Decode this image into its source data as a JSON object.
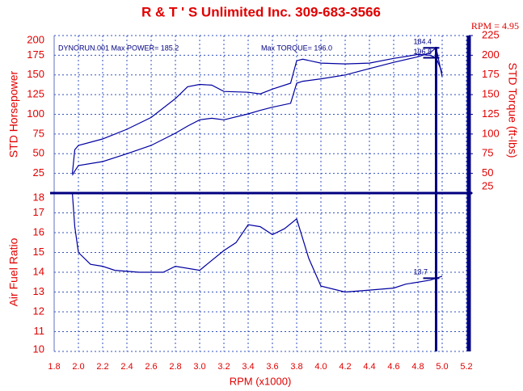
{
  "chart_data": [
    {
      "type": "line",
      "title": "R & T ' S   Unlimited Inc. 309-683-3566",
      "cursor_label": "RPM = 4.95",
      "cursor_rpm": 4.95,
      "ylabel": "STD Horsepower",
      "y2label": "STD Torque (ft-lbs)",
      "annotations": [
        "DYNORUN.001  Max POWER= 185.2",
        "Max TORQUE= 196.0"
      ],
      "xlim": [
        1.8,
        5.2
      ],
      "ylim": [
        0,
        200
      ],
      "yticks": [
        25,
        50,
        75,
        100,
        125,
        150,
        175,
        200
      ],
      "y2lim": [
        25,
        225
      ],
      "y2ticks": [
        25,
        50,
        75,
        100,
        125,
        150,
        175,
        200,
        225
      ],
      "grid": true,
      "x": [
        1.95,
        1.97,
        2.0,
        2.2,
        2.4,
        2.6,
        2.8,
        2.9,
        3.0,
        3.1,
        3.2,
        3.4,
        3.5,
        3.6,
        3.75,
        3.8,
        3.85,
        4.0,
        4.2,
        4.4,
        4.6,
        4.8,
        4.9,
        4.95,
        5.0
      ],
      "series": [
        {
          "color": "#0000a0",
          "values": [
            22.6,
            28,
            35,
            40,
            50,
            60.5,
            76,
            85,
            93,
            95,
            93,
            100.5,
            105,
            109,
            114,
            139.5,
            142,
            145,
            150,
            158,
            166,
            173,
            178,
            184.4,
            147.7
          ]
        },
        {
          "color": "#0000a0",
          "axis": "y2",
          "values": [
            49.6,
            80,
            85.5,
            93.7,
            106,
            121,
            145,
            160,
            163,
            162,
            154,
            153,
            151,
            157,
            164.5,
            193,
            195,
            190,
            189,
            190,
            196,
            201,
            200,
            196.8,
            178
          ]
        }
      ],
      "cursor_values": [
        184.4,
        196.8
      ]
    },
    {
      "type": "line",
      "ylabel": "Air Fuel Ratio",
      "xlabel": "RPM (x1000)",
      "xlim": [
        1.8,
        5.2
      ],
      "xticks": [
        1.8,
        {
          "value": 2,
          "label": "2.0"
        },
        2.2,
        2.4,
        2.6,
        2.8,
        {
          "value": 3,
          "label": "3.0"
        },
        3.2,
        3.4,
        3.6,
        3.8,
        {
          "value": 4,
          "label": "4.0"
        },
        4.2,
        4.4,
        4.6,
        4.8,
        {
          "value": 5,
          "label": "5.0"
        },
        5.2
      ],
      "ylim": [
        10,
        18
      ],
      "yticks": [
        10,
        11,
        12,
        13,
        14,
        15,
        16,
        17,
        18
      ],
      "grid": true,
      "x": [
        1.95,
        1.97,
        2.0,
        2.1,
        2.2,
        2.3,
        2.5,
        2.7,
        2.8,
        3.0,
        3.1,
        3.2,
        3.3,
        3.4,
        3.5,
        3.6,
        3.7,
        3.8,
        3.9,
        4.0,
        4.2,
        4.4,
        4.6,
        4.7,
        4.9,
        4.95,
        5.0
      ],
      "series": [
        {
          "color": "#0000a0",
          "values": [
            18,
            16.3,
            15,
            14.4,
            14.3,
            14.1,
            14.0,
            14.0,
            14.3,
            14.1,
            14.6,
            15.1,
            15.5,
            16.4,
            16.3,
            15.9,
            16.2,
            16.7,
            14.7,
            13.3,
            13.0,
            13.1,
            13.2,
            13.4,
            13.6,
            13.7,
            13.8
          ]
        }
      ],
      "cursor_values": [
        13.7
      ]
    }
  ]
}
